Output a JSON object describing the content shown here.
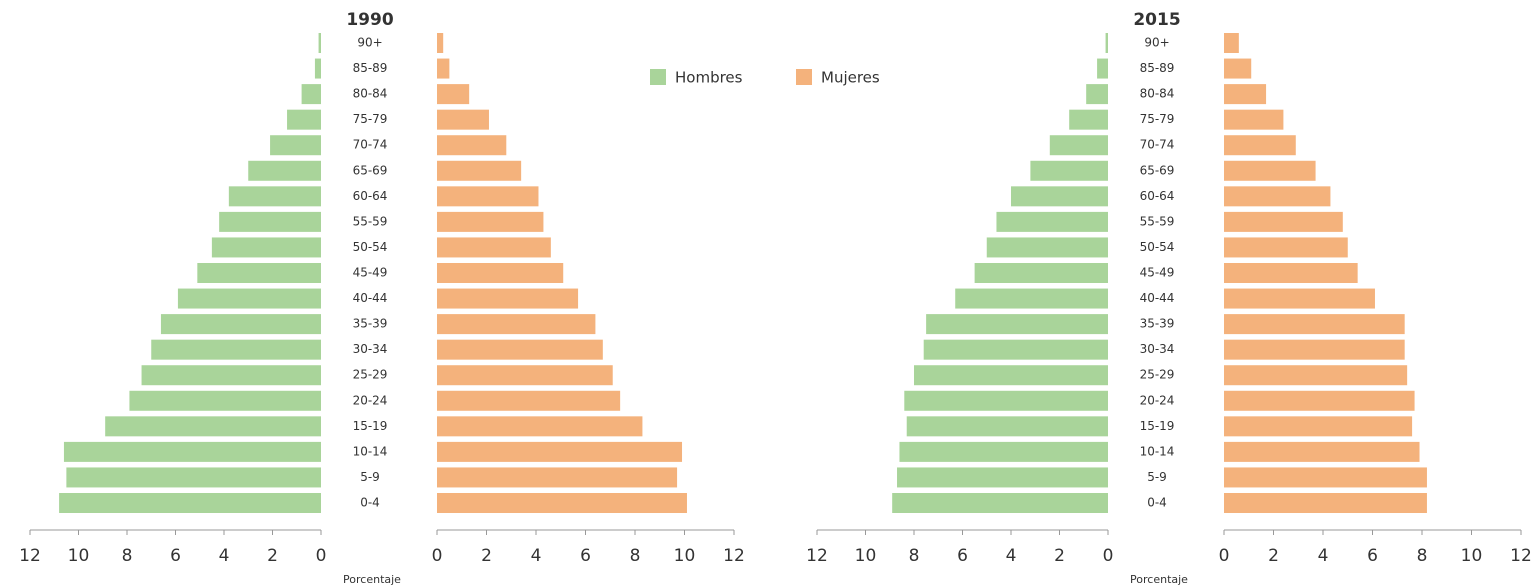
{
  "chart_data": [
    {
      "type": "pyramid",
      "title": "1990",
      "xlabel": "Porcentaje",
      "categories": [
        "0-4",
        "5-9",
        "10-14",
        "15-19",
        "20-24",
        "25-29",
        "30-34",
        "35-39",
        "40-44",
        "45-49",
        "50-54",
        "55-59",
        "60-64",
        "65-69",
        "70-74",
        "75-79",
        "80-84",
        "85-89",
        "90+"
      ],
      "series": [
        {
          "name": "Hombres",
          "color": "#a9d49a",
          "values": [
            10.8,
            10.5,
            10.6,
            8.9,
            7.9,
            7.4,
            7.0,
            6.6,
            5.9,
            5.1,
            4.5,
            4.2,
            3.8,
            3.0,
            2.1,
            1.4,
            0.8,
            0.25,
            0.1
          ]
        },
        {
          "name": "Mujeres",
          "color": "#f4b27c",
          "values": [
            10.1,
            9.7,
            9.9,
            8.3,
            7.4,
            7.1,
            6.7,
            6.4,
            5.7,
            5.1,
            4.6,
            4.3,
            4.1,
            3.4,
            2.8,
            2.1,
            1.3,
            0.5,
            0.25
          ]
        }
      ],
      "xlim": [
        0,
        12
      ],
      "xticks": [
        0,
        2,
        4,
        6,
        8,
        10,
        12
      ]
    },
    {
      "type": "pyramid",
      "title": "2015",
      "xlabel": "Porcentaje",
      "categories": [
        "0-4",
        "5-9",
        "10-14",
        "15-19",
        "20-24",
        "25-29",
        "30-34",
        "35-39",
        "40-44",
        "45-49",
        "50-54",
        "55-59",
        "60-64",
        "65-69",
        "70-74",
        "75-79",
        "80-84",
        "85-89",
        "90+"
      ],
      "series": [
        {
          "color": "#a9d49a",
          "values": [
            8.9,
            8.7,
            8.6,
            8.3,
            8.4,
            8.0,
            7.6,
            7.5,
            6.3,
            5.5,
            5.0,
            4.6,
            4.0,
            3.2,
            2.4,
            1.6,
            0.9,
            0.45,
            0.1
          ]
        },
        {
          "color": "#f4b27c",
          "values": [
            8.2,
            8.2,
            7.9,
            7.6,
            7.7,
            7.4,
            7.3,
            7.3,
            6.1,
            5.4,
            5.0,
            4.8,
            4.3,
            3.7,
            2.9,
            2.4,
            1.7,
            1.1,
            0.6
          ]
        }
      ],
      "xlim": [
        0,
        12
      ],
      "xticks": [
        0,
        2,
        4,
        6,
        8,
        10,
        12
      ]
    }
  ]
}
